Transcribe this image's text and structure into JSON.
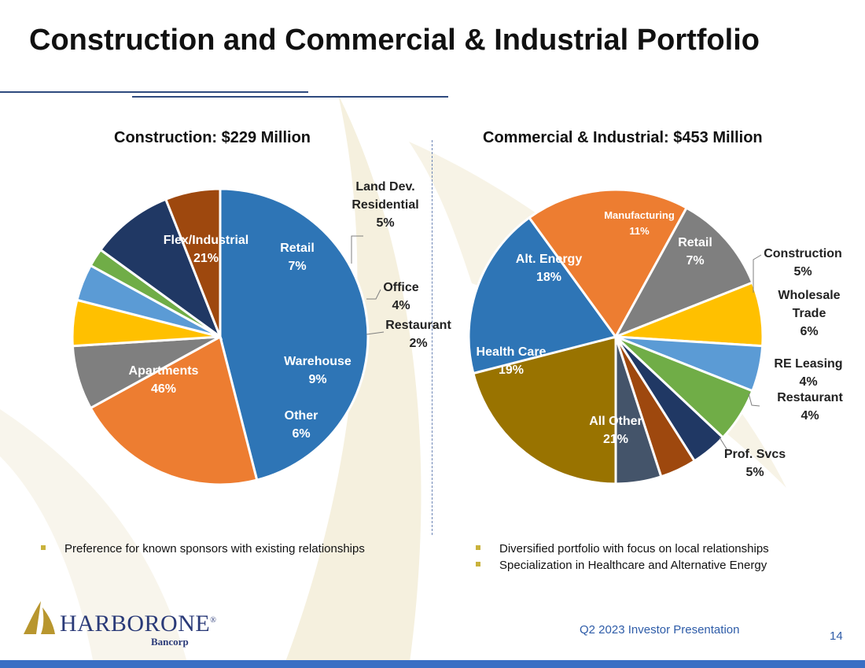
{
  "page": {
    "title": "Construction and Commercial & Industrial Portfolio",
    "footer": "Q2 2023 Investor Presentation",
    "page_number": "14"
  },
  "logo": {
    "word_harbor": "HARBOR",
    "word_one": "ONE",
    "sub": "Bancorp"
  },
  "colors": {
    "title_rule": "#2e4a7e",
    "bullet": "#c9b23c",
    "footer_text": "#2e5ca8",
    "bottom_bar": "#3a6fc4",
    "logo_gold": "#b8962e",
    "logo_blue": "#2a3a78"
  },
  "bullets_left": [
    "Preference for known sponsors with existing relationships"
  ],
  "bullets_right": [
    "Diversified portfolio with focus on local relationships",
    "Specialization in Healthcare and Alternative Energy"
  ],
  "chart_data": [
    {
      "type": "pie",
      "title": "Construction:  $229 Million",
      "slices": [
        {
          "label": "Apartments",
          "value": 46,
          "value_label": "46%",
          "color": "#2e75b6"
        },
        {
          "label": "Flex/Industrial",
          "value": 21,
          "value_label": "21%",
          "color": "#ed7d31"
        },
        {
          "label": "Retail",
          "value": 7,
          "value_label": "7%",
          "color": "#7f7f7f"
        },
        {
          "label": "Land Dev. Residential",
          "value": 5,
          "value_label": "5%",
          "color": "#ffc000"
        },
        {
          "label": "Office",
          "value": 4,
          "value_label": "4%",
          "color": "#5b9bd5"
        },
        {
          "label": "Restaurant",
          "value": 2,
          "value_label": "2%",
          "color": "#70ad47"
        },
        {
          "label": "Warehouse",
          "value": 9,
          "value_label": "9%",
          "color": "#203864"
        },
        {
          "label": "Other",
          "value": 6,
          "value_label": "6%",
          "color": "#9e480e"
        }
      ]
    },
    {
      "type": "pie",
      "title": "Commercial & Industrial:  $453 Million",
      "slices": [
        {
          "label": "All Other",
          "value": 21,
          "value_label": "21%",
          "color": "#997300"
        },
        {
          "label": "Health Care",
          "value": 19,
          "value_label": "19%",
          "color": "#2e75b6"
        },
        {
          "label": "Alt. Energy",
          "value": 18,
          "value_label": "18%",
          "color": "#ed7d31"
        },
        {
          "label": "Manufacturing",
          "value": 11,
          "value_label": "11%",
          "color": "#7f7f7f"
        },
        {
          "label": "Retail",
          "value": 7,
          "value_label": "7%",
          "color": "#ffc000"
        },
        {
          "label": "Construction",
          "value": 5,
          "value_label": "5%",
          "color": "#5b9bd5"
        },
        {
          "label": "Wholesale Trade",
          "value": 6,
          "value_label": "6%",
          "color": "#70ad47"
        },
        {
          "label": "RE Leasing",
          "value": 4,
          "value_label": "4%",
          "color": "#203864"
        },
        {
          "label": "Restaurant",
          "value": 4,
          "value_label": "4%",
          "color": "#9e480e"
        },
        {
          "label": "Prof. Svcs",
          "value": 5,
          "value_label": "5%",
          "color": "#44546a"
        }
      ]
    }
  ]
}
